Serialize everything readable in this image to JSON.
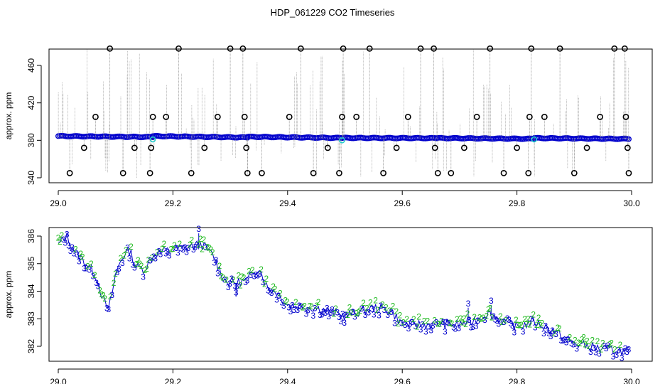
{
  "figure": {
    "title": "HDP_061229  CO2 Timeseries"
  },
  "colors": {
    "frame": "#000000",
    "spike": "#888888",
    "outlier": "#000000",
    "primary": "#0000cc",
    "secondary": "#22bb22",
    "highlight": "#22cccc"
  },
  "chart_data": [
    {
      "type": "scatter",
      "title": "",
      "xlabel": "",
      "ylabel": "approx. ppm",
      "xlim": [
        29.0,
        30.0
      ],
      "ylim": [
        340,
        480
      ],
      "x_ticks": [
        "29.0",
        "29.2",
        "29.4",
        "29.6",
        "29.8",
        "30.0"
      ],
      "y_ticks": [
        "340",
        "380",
        "420",
        "460"
      ],
      "baseline_segments": [
        {
          "x0": 29.0,
          "x1": 29.165,
          "y0": 384.5,
          "y1": 383.5
        },
        {
          "x0": 29.165,
          "x1": 29.33,
          "y0": 384.5,
          "y1": 383.0
        },
        {
          "x0": 29.33,
          "x1": 29.495,
          "y0": 383.8,
          "y1": 382.5
        },
        {
          "x0": 29.495,
          "x1": 29.66,
          "y0": 382.6,
          "y1": 382.3
        },
        {
          "x0": 29.66,
          "x1": 29.83,
          "y0": 382.4,
          "y1": 381.6
        },
        {
          "x0": 29.83,
          "x1": 29.995,
          "y0": 382.4,
          "y1": 381.5
        }
      ],
      "outliers": {
        "x": [
          29.02,
          29.045,
          29.065,
          29.09,
          29.113,
          29.133,
          29.16,
          29.162,
          29.165,
          29.188,
          29.21,
          29.232,
          29.255,
          29.278,
          29.3,
          29.322,
          29.325,
          29.328,
          29.33,
          29.355,
          29.403,
          29.423,
          29.445,
          29.47,
          29.49,
          29.495,
          29.497,
          29.52,
          29.543,
          29.567,
          29.59,
          29.61,
          29.632,
          29.655,
          29.657,
          29.662,
          29.685,
          29.708,
          29.73,
          29.753,
          29.777,
          29.8,
          29.82,
          29.822,
          29.825,
          29.848,
          29.875,
          29.9,
          29.922,
          29.945,
          29.97,
          29.988,
          29.99,
          29.993,
          29.995
        ],
        "y": [
          345,
          372,
          405,
          478,
          345,
          372,
          345,
          372,
          405,
          405,
          478,
          345,
          372,
          405,
          478,
          478,
          405,
          372,
          345,
          345,
          405,
          478,
          345,
          372,
          345,
          405,
          478,
          405,
          478,
          345,
          372,
          405,
          478,
          478,
          372,
          345,
          345,
          372,
          405,
          478,
          345,
          372,
          345,
          405,
          478,
          405,
          478,
          345,
          372,
          405,
          478,
          478,
          405,
          372,
          345
        ]
      },
      "highlighted_points": {
        "x": [
          29.165,
          29.495,
          29.83
        ],
        "y": [
          381,
          380,
          381
        ]
      }
    },
    {
      "type": "scatter",
      "title": "",
      "xlabel": "",
      "ylabel": "approx. ppm",
      "xlim": [
        29.0,
        30.0
      ],
      "ylim": [
        381.3,
        386.4
      ],
      "x_ticks": [
        "29.0",
        "29.2",
        "29.4",
        "29.6",
        "29.8",
        "30.0"
      ],
      "y_ticks": [
        "382",
        "383",
        "384",
        "385",
        "386"
      ],
      "marker_labels": [
        "3",
        "2"
      ],
      "profile": {
        "x": [
          29.0,
          29.015,
          29.03,
          29.05,
          29.065,
          29.08,
          29.088,
          29.1,
          29.11,
          29.125,
          29.135,
          29.15,
          29.17,
          29.2,
          29.25,
          29.27,
          29.29,
          29.31,
          29.33,
          29.35,
          29.365,
          29.38,
          29.4,
          29.45,
          29.5,
          29.55,
          29.58,
          29.6,
          29.65,
          29.7,
          29.72,
          29.75,
          29.78,
          29.8,
          29.83,
          29.86,
          29.9,
          29.95,
          30.0
        ],
        "y": [
          385.7,
          386.0,
          385.4,
          385.0,
          384.6,
          383.6,
          383.3,
          384.6,
          385.2,
          385.5,
          384.9,
          384.8,
          385.4,
          385.5,
          385.7,
          385.3,
          384.4,
          384.3,
          384.4,
          384.9,
          384.1,
          384.0,
          383.5,
          383.4,
          383.1,
          383.4,
          383.3,
          382.8,
          382.8,
          382.8,
          382.9,
          383.2,
          382.9,
          382.7,
          382.9,
          382.6,
          382.1,
          381.9,
          381.8
        ]
      },
      "spikes": [
        {
          "x": 29.31,
          "y": 383.8
        },
        {
          "x": 29.715,
          "y": 383.4
        },
        {
          "x": 29.755,
          "y": 383.5
        },
        {
          "x": 29.245,
          "y": 386.1
        }
      ]
    }
  ]
}
